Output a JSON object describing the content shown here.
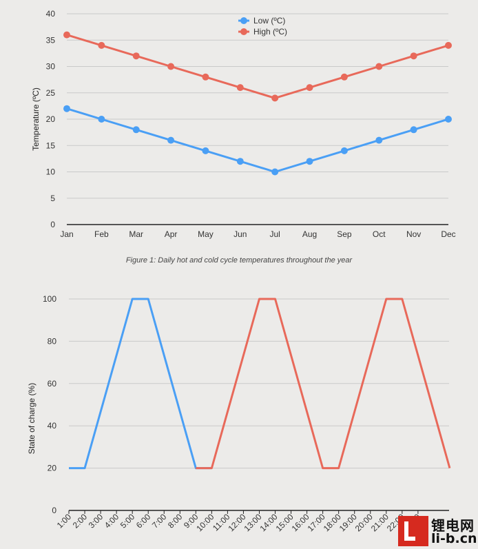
{
  "chart_data": [
    {
      "type": "line",
      "title": "",
      "xlabel": "",
      "ylabel": "Temperature (ºC)",
      "ylim": [
        0,
        40
      ],
      "yticks": [
        0,
        5,
        10,
        15,
        20,
        25,
        30,
        35,
        40
      ],
      "grid": true,
      "legend_position": "top-center",
      "categories": [
        "Jan",
        "Feb",
        "Mar",
        "Apr",
        "May",
        "Jun",
        "Jul",
        "Aug",
        "Sep",
        "Oct",
        "Nov",
        "Dec"
      ],
      "series": [
        {
          "name": "Low (ºC)",
          "color": "#4a9ff5",
          "values": [
            22,
            20,
            18,
            16,
            14,
            12,
            10,
            12,
            14,
            16,
            18,
            20
          ]
        },
        {
          "name": "High (ºC)",
          "color": "#e8695a",
          "values": [
            36,
            34,
            32,
            30,
            28,
            26,
            24,
            26,
            28,
            30,
            32,
            34
          ]
        }
      ],
      "caption": "Figure 1: Daily hot and cold cycle temperatures throughout the year"
    },
    {
      "type": "line",
      "title": "",
      "xlabel": "",
      "ylabel": "State of charge (%)",
      "ylim": [
        0,
        100
      ],
      "yticks": [
        0,
        20,
        40,
        60,
        80,
        100
      ],
      "grid": true,
      "categories": [
        "1:00",
        "2:00",
        "3:00",
        "4:00",
        "5:00",
        "6:00",
        "7:00",
        "8:00",
        "9:00",
        "10:00",
        "11:00",
        "12:00",
        "13:00",
        "14:00",
        "15:00",
        "16:00",
        "17:00",
        "18:00",
        "19:00",
        "20:00",
        "21:00",
        "22:00",
        "23:00"
      ],
      "values": [
        20,
        20,
        20,
        20,
        20,
        20,
        20,
        20,
        20,
        20,
        20,
        20,
        20,
        20,
        20,
        20,
        20,
        20,
        20,
        20,
        20,
        20,
        20
      ],
      "series": [
        {
          "color": "#4a9ff5",
          "points": [
            [
              0,
              20
            ],
            [
              1,
              20
            ],
            [
              4,
              100
            ],
            [
              5,
              100
            ],
            [
              8,
              20
            ],
            [
              9,
              20
            ]
          ]
        },
        {
          "color": "#e8695a",
          "points": [
            [
              8,
              20
            ],
            [
              9,
              20
            ],
            [
              12,
              100
            ],
            [
              13,
              100
            ],
            [
              16,
              20
            ],
            [
              17,
              20
            ],
            [
              20,
              100
            ],
            [
              21,
              100
            ],
            [
              24,
              20
            ]
          ]
        }
      ]
    }
  ],
  "watermark": {
    "chinese": "锂电网",
    "url": "li-b.cn"
  }
}
